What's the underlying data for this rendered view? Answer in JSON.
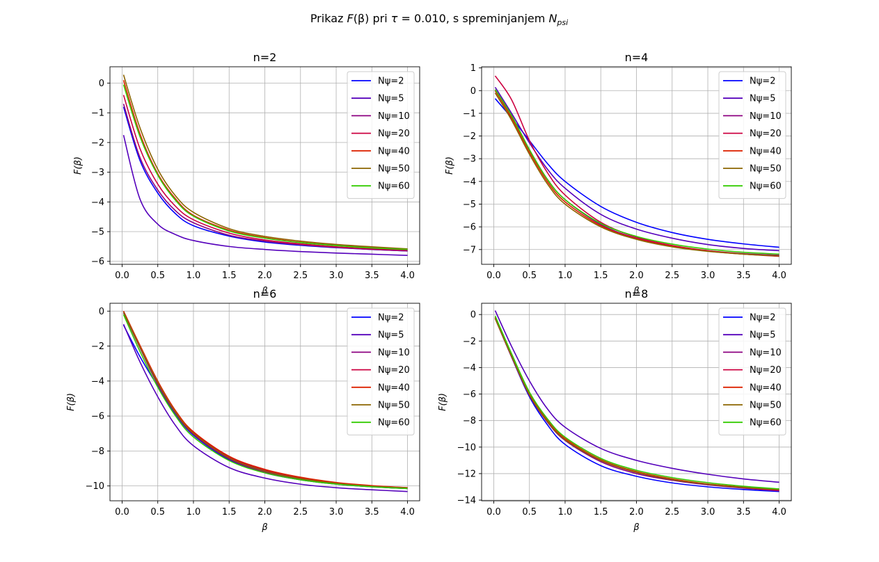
{
  "figure": {
    "suptitle_parts": [
      "Prikaz ",
      "F",
      "(β) pri ",
      "τ",
      " = 0.010, s spreminjanjem ",
      "N",
      "psi"
    ]
  },
  "chart_data": [
    {
      "type": "line",
      "title": "n=2",
      "xlabel": "β",
      "ylabel": "F(β)",
      "xlim": [
        -0.17,
        4.17
      ],
      "ylim": [
        -6.1,
        0.55
      ],
      "xticks": [
        0.0,
        0.5,
        1.0,
        1.5,
        2.0,
        2.5,
        3.0,
        3.5,
        4.0
      ],
      "xtick_labels": [
        "0.0",
        "0.5",
        "1.0",
        "1.5",
        "2.0",
        "2.5",
        "3.0",
        "3.5",
        "4.0"
      ],
      "yticks": [
        0,
        -1,
        -2,
        -3,
        -4,
        -5,
        -6
      ],
      "ytick_labels": [
        "0",
        "−1",
        "−2",
        "−3",
        "−4",
        "−5",
        "−6"
      ],
      "grid": true,
      "legend_position": "upper-right",
      "x": [
        0.02,
        0.25,
        0.5,
        0.75,
        1.0,
        1.5,
        2.0,
        2.5,
        3.0,
        3.5,
        4.0
      ],
      "series": [
        {
          "name": "Nψ=2",
          "color": "#0000ff",
          "values": [
            -0.8,
            -2.6,
            -3.7,
            -4.4,
            -4.8,
            -5.15,
            -5.35,
            -5.46,
            -5.54,
            -5.6,
            -5.65
          ]
        },
        {
          "name": "Nψ=5",
          "color": "#5500bb",
          "values": [
            -1.75,
            -3.9,
            -4.75,
            -5.1,
            -5.3,
            -5.5,
            -5.6,
            -5.67,
            -5.72,
            -5.76,
            -5.8
          ]
        },
        {
          "name": "Nψ=10",
          "color": "#8c0080",
          "values": [
            -0.7,
            -2.5,
            -3.6,
            -4.3,
            -4.7,
            -5.12,
            -5.32,
            -5.44,
            -5.53,
            -5.6,
            -5.65
          ]
        },
        {
          "name": "Nψ=20",
          "color": "#cc0040",
          "values": [
            -0.4,
            -2.2,
            -3.4,
            -4.15,
            -4.6,
            -5.05,
            -5.28,
            -5.41,
            -5.51,
            -5.58,
            -5.62
          ]
        },
        {
          "name": "Nψ=40",
          "color": "#dd2200",
          "values": [
            0.1,
            -1.7,
            -3.05,
            -3.9,
            -4.45,
            -4.95,
            -5.2,
            -5.36,
            -5.46,
            -5.54,
            -5.6
          ]
        },
        {
          "name": "Nψ=50",
          "color": "#8c6400",
          "values": [
            0.28,
            -1.5,
            -2.9,
            -3.8,
            -4.35,
            -4.9,
            -5.16,
            -5.32,
            -5.43,
            -5.51,
            -5.58
          ]
        },
        {
          "name": "Nψ=60",
          "color": "#33cc00",
          "values": [
            -0.05,
            -1.8,
            -3.1,
            -3.95,
            -4.48,
            -4.98,
            -5.22,
            -5.37,
            -5.47,
            -5.55,
            -5.6
          ]
        }
      ]
    },
    {
      "type": "line",
      "title": "n=4",
      "xlabel": "β",
      "ylabel": "F(β)",
      "xlim": [
        -0.17,
        4.17
      ],
      "ylim": [
        -7.65,
        1.05
      ],
      "xticks": [
        0.0,
        0.5,
        1.0,
        1.5,
        2.0,
        2.5,
        3.0,
        3.5,
        4.0
      ],
      "xtick_labels": [
        "0.0",
        "0.5",
        "1.0",
        "1.5",
        "2.0",
        "2.5",
        "3.0",
        "3.5",
        "4.0"
      ],
      "yticks": [
        1,
        0,
        -1,
        -2,
        -3,
        -4,
        -5,
        -6,
        -7
      ],
      "ytick_labels": [
        "1",
        "0",
        "−1",
        "−2",
        "−3",
        "−4",
        "−5",
        "−6",
        "−7"
      ],
      "grid": true,
      "legend_position": "upper-right",
      "x": [
        0.02,
        0.25,
        0.5,
        0.75,
        1.0,
        1.5,
        2.0,
        2.5,
        3.0,
        3.5,
        4.0
      ],
      "series": [
        {
          "name": "Nψ=2",
          "color": "#0000ff",
          "values": [
            -0.35,
            -1.2,
            -2.2,
            -3.2,
            -4.0,
            -5.1,
            -5.8,
            -6.25,
            -6.55,
            -6.75,
            -6.9
          ]
        },
        {
          "name": "Nψ=5",
          "color": "#5500bb",
          "values": [
            0.15,
            -1.0,
            -2.3,
            -3.45,
            -4.3,
            -5.45,
            -6.1,
            -6.5,
            -6.78,
            -6.95,
            -7.05
          ]
        },
        {
          "name": "Nψ=10",
          "color": "#8c0080",
          "values": [
            0.0,
            -1.1,
            -2.6,
            -3.9,
            -4.8,
            -5.9,
            -6.5,
            -6.85,
            -7.05,
            -7.18,
            -7.25
          ]
        },
        {
          "name": "Nψ=20",
          "color": "#cc0040",
          "values": [
            0.65,
            -0.4,
            -2.2,
            -3.6,
            -4.6,
            -5.8,
            -6.45,
            -6.82,
            -7.05,
            -7.2,
            -7.3
          ]
        },
        {
          "name": "Nψ=40",
          "color": "#dd2200",
          "values": [
            0.0,
            -1.2,
            -2.7,
            -4.0,
            -4.9,
            -5.95,
            -6.52,
            -6.86,
            -7.07,
            -7.2,
            -7.28
          ]
        },
        {
          "name": "Nψ=50",
          "color": "#8c6400",
          "values": [
            -0.1,
            -1.3,
            -2.8,
            -4.1,
            -5.0,
            -6.0,
            -6.55,
            -6.88,
            -7.08,
            -7.2,
            -7.28
          ]
        },
        {
          "name": "Nψ=60",
          "color": "#33cc00",
          "values": [
            0.05,
            -1.1,
            -2.6,
            -3.9,
            -4.8,
            -5.85,
            -6.42,
            -6.76,
            -6.98,
            -7.12,
            -7.2
          ]
        }
      ]
    },
    {
      "type": "line",
      "title": "n=6",
      "xlabel": "β",
      "ylabel": "F(β)",
      "xlim": [
        -0.17,
        4.17
      ],
      "ylim": [
        -10.85,
        0.45
      ],
      "xticks": [
        0.0,
        0.5,
        1.0,
        1.5,
        2.0,
        2.5,
        3.0,
        3.5,
        4.0
      ],
      "xtick_labels": [
        "0.0",
        "0.5",
        "1.0",
        "1.5",
        "2.0",
        "2.5",
        "3.0",
        "3.5",
        "4.0"
      ],
      "yticks": [
        0,
        -2,
        -4,
        -6,
        -8,
        -10
      ],
      "ytick_labels": [
        "0",
        "−2",
        "−4",
        "−6",
        "−8",
        "−10"
      ],
      "grid": true,
      "legend_position": "upper-right",
      "x": [
        0.02,
        0.25,
        0.5,
        0.75,
        1.0,
        1.5,
        2.0,
        2.5,
        3.0,
        3.5,
        4.0
      ],
      "series": [
        {
          "name": "Nψ=2",
          "color": "#0000ff",
          "values": [
            -0.8,
            -2.6,
            -4.3,
            -5.9,
            -7.1,
            -8.5,
            -9.25,
            -9.65,
            -9.9,
            -10.05,
            -10.15
          ]
        },
        {
          "name": "Nψ=5",
          "color": "#5500bb",
          "values": [
            -0.75,
            -2.9,
            -4.9,
            -6.55,
            -7.7,
            -8.95,
            -9.55,
            -9.9,
            -10.1,
            -10.22,
            -10.32
          ]
        },
        {
          "name": "Nψ=10",
          "color": "#8c0080",
          "values": [
            -0.1,
            -2.1,
            -4.2,
            -5.85,
            -7.05,
            -8.45,
            -9.2,
            -9.62,
            -9.88,
            -10.04,
            -10.15
          ]
        },
        {
          "name": "Nψ=20",
          "color": "#cc0040",
          "values": [
            0.0,
            -2.0,
            -4.05,
            -5.75,
            -6.95,
            -8.35,
            -9.1,
            -9.55,
            -9.83,
            -10.0,
            -10.1
          ]
        },
        {
          "name": "Nψ=40",
          "color": "#dd2200",
          "values": [
            0.0,
            -1.95,
            -4.0,
            -5.7,
            -6.9,
            -8.3,
            -9.05,
            -9.5,
            -9.8,
            -9.98,
            -10.1
          ]
        },
        {
          "name": "Nψ=50",
          "color": "#8c6400",
          "values": [
            -0.05,
            -2.05,
            -4.1,
            -5.8,
            -7.0,
            -8.4,
            -9.15,
            -9.58,
            -9.85,
            -10.02,
            -10.12
          ]
        },
        {
          "name": "Nψ=60",
          "color": "#33cc00",
          "values": [
            -0.2,
            -2.3,
            -4.35,
            -6.0,
            -7.2,
            -8.55,
            -9.25,
            -9.65,
            -9.9,
            -10.05,
            -10.15
          ]
        }
      ]
    },
    {
      "type": "line",
      "title": "n=8",
      "xlabel": "β",
      "ylabel": "F(β)",
      "xlim": [
        -0.17,
        4.17
      ],
      "ylim": [
        -14.05,
        0.85
      ],
      "xticks": [
        0.0,
        0.5,
        1.0,
        1.5,
        2.0,
        2.5,
        3.0,
        3.5,
        4.0
      ],
      "xtick_labels": [
        "0.0",
        "0.5",
        "1.0",
        "1.5",
        "2.0",
        "2.5",
        "3.0",
        "3.5",
        "4.0"
      ],
      "yticks": [
        0,
        -2,
        -4,
        -6,
        -8,
        -10,
        -12,
        -14
      ],
      "ytick_labels": [
        "0",
        "−2",
        "−4",
        "−6",
        "−8",
        "−10",
        "−12",
        "−14"
      ],
      "grid": true,
      "legend_position": "upper-right",
      "x": [
        0.02,
        0.25,
        0.5,
        0.75,
        1.0,
        1.5,
        2.0,
        2.5,
        3.0,
        3.5,
        4.0
      ],
      "series": [
        {
          "name": "Nψ=2",
          "color": "#0000ff",
          "values": [
            -0.2,
            -3.2,
            -6.2,
            -8.3,
            -9.8,
            -11.4,
            -12.2,
            -12.7,
            -13.0,
            -13.2,
            -13.35
          ]
        },
        {
          "name": "Nψ=5",
          "color": "#5500bb",
          "values": [
            0.3,
            -2.4,
            -5.0,
            -7.1,
            -8.5,
            -10.1,
            -11.0,
            -11.6,
            -12.05,
            -12.4,
            -12.65
          ]
        },
        {
          "name": "Nψ=10",
          "color": "#8c0080",
          "values": [
            -0.3,
            -3.2,
            -6.1,
            -8.1,
            -9.5,
            -11.1,
            -12.0,
            -12.5,
            -12.85,
            -13.1,
            -13.3
          ]
        },
        {
          "name": "Nψ=20",
          "color": "#cc0040",
          "values": [
            -0.25,
            -3.1,
            -6.0,
            -8.0,
            -9.4,
            -11.0,
            -11.9,
            -12.45,
            -12.8,
            -13.05,
            -13.25
          ]
        },
        {
          "name": "Nψ=40",
          "color": "#dd2200",
          "values": [
            -0.2,
            -3.05,
            -5.95,
            -7.95,
            -9.35,
            -10.95,
            -11.85,
            -12.4,
            -12.78,
            -13.02,
            -13.2
          ]
        },
        {
          "name": "Nψ=50",
          "color": "#8c6400",
          "values": [
            -0.3,
            -3.15,
            -6.05,
            -8.05,
            -9.45,
            -11.0,
            -11.9,
            -12.45,
            -12.8,
            -13.05,
            -13.2
          ]
        },
        {
          "name": "Nψ=60",
          "color": "#33cc00",
          "values": [
            -0.1,
            -2.95,
            -5.85,
            -7.85,
            -9.25,
            -10.85,
            -11.75,
            -12.3,
            -12.68,
            -12.95,
            -13.15
          ]
        }
      ]
    }
  ]
}
